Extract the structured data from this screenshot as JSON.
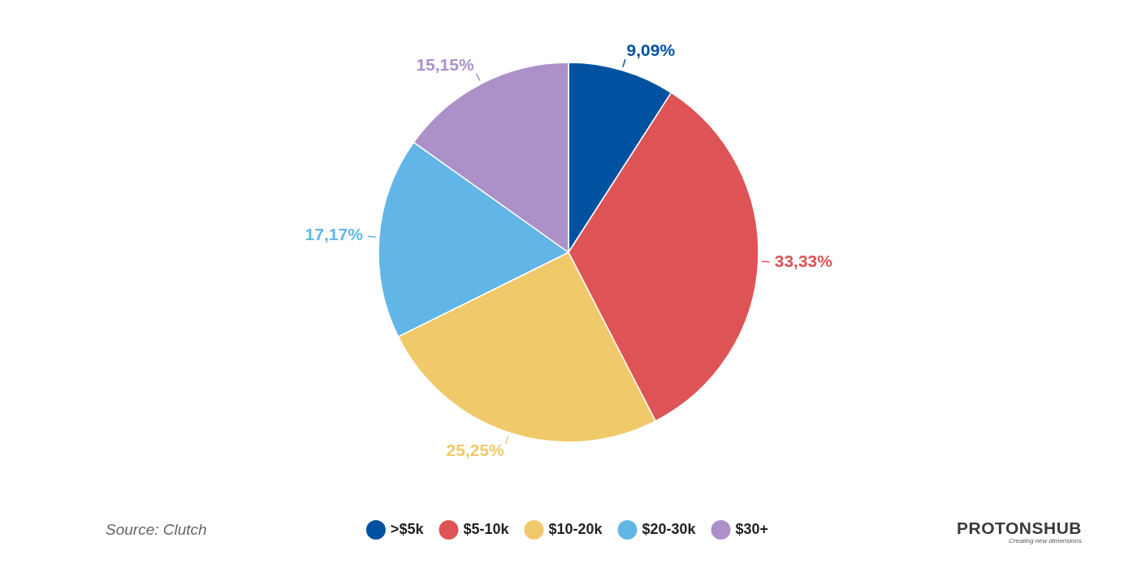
{
  "chart_data": {
    "type": "pie",
    "categories": [
      ">$5k",
      "$5-10k",
      "$10-20k",
      "$20-30k",
      "$30+"
    ],
    "values": [
      9.09,
      33.33,
      25.25,
      17.17,
      15.15
    ],
    "value_labels": [
      "9,09%",
      "33,33%",
      "25,25%",
      "17,17%",
      "15,15%"
    ],
    "colors": [
      "#0052a0",
      "#de5456",
      "#f0c96a",
      "#62b6e7",
      "#ab91c8"
    ],
    "data_labels": true,
    "legend": "bottom"
  },
  "source": "Source: Clutch",
  "logo": {
    "name": "PROTONSHUB",
    "tagline": "Creating new dimensions"
  }
}
